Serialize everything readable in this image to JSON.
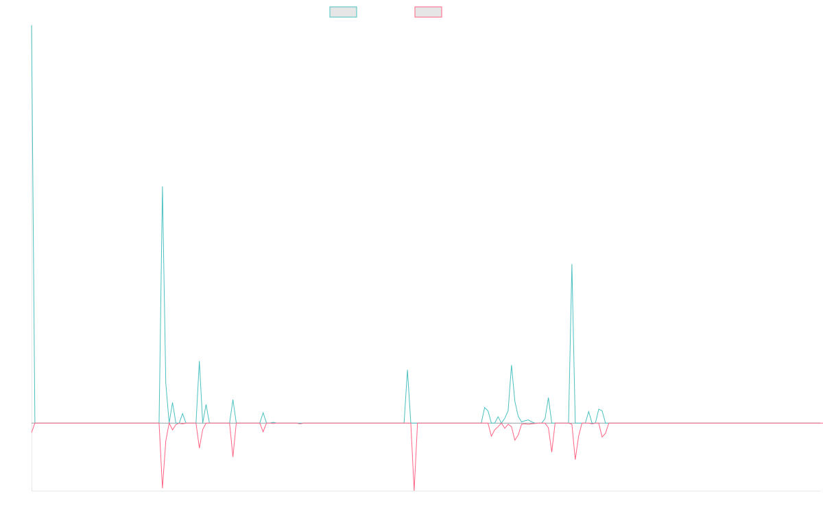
{
  "chart_data": {
    "type": "line",
    "title": "",
    "xlabel": "",
    "ylabel": "",
    "ylim": [
      -0.17,
      1.0
    ],
    "grid": false,
    "legend_position": "top-center",
    "series": [
      {
        "name": "",
        "color": "#4bc0c0",
        "legend_fill": "#e6e6e6",
        "values": [
          1.0,
          0,
          0,
          0,
          0,
          0,
          0,
          0,
          0,
          0,
          0,
          0,
          0,
          0,
          0,
          0,
          0,
          0,
          0,
          0,
          0,
          0,
          0,
          0,
          0,
          0,
          0,
          0,
          0,
          0,
          0,
          0,
          0,
          0,
          0,
          0,
          0,
          0,
          0,
          0.595,
          0.1,
          0,
          0.052,
          0,
          0,
          0.024,
          0,
          0,
          0,
          0,
          0.156,
          0,
          0.047,
          0,
          0,
          0,
          0,
          0,
          0,
          0,
          0.059,
          0,
          0,
          0,
          0,
          0,
          0,
          0,
          0,
          0.026,
          0,
          0,
          0.002,
          0,
          0,
          0,
          0,
          0,
          0,
          0,
          0,
          0,
          0,
          0,
          0,
          0,
          0,
          0,
          0,
          0,
          0,
          0,
          0,
          0,
          0,
          0,
          0,
          0,
          0,
          0,
          0,
          0,
          0,
          0,
          0,
          0,
          0,
          0,
          0,
          0,
          0,
          0,
          0.134,
          0,
          0,
          0,
          0,
          0,
          0,
          0,
          0,
          0,
          0,
          0,
          0,
          0,
          0,
          0,
          0,
          0,
          0,
          0,
          0,
          0,
          0,
          0.039,
          0.031,
          0,
          0,
          0.016,
          0,
          0.012,
          0.031,
          0.146,
          0.055,
          0.017,
          0.003,
          0.006,
          0.008,
          0.003,
          0,
          0,
          0,
          0.011,
          0.064,
          0,
          0,
          0,
          0,
          0,
          0,
          0.4,
          0,
          0,
          0,
          0,
          0.029,
          0,
          0,
          0.035,
          0.031,
          0,
          0,
          0,
          0,
          0,
          0,
          0,
          0,
          0,
          0,
          0,
          0,
          0,
          0,
          0,
          0,
          0,
          0,
          0,
          0,
          0,
          0,
          0,
          0,
          0,
          0,
          0,
          0,
          0,
          0,
          0,
          0,
          0,
          0,
          0,
          0,
          0,
          0,
          0,
          0,
          0,
          0,
          0,
          0,
          0,
          0,
          0,
          0,
          0,
          0,
          0,
          0,
          0,
          0,
          0,
          0,
          0,
          0,
          0,
          0,
          0,
          0,
          0,
          0,
          0
        ]
      },
      {
        "name": "",
        "color": "#ff6384",
        "legend_fill": "#e6e6e6",
        "values": [
          -0.024,
          0,
          0,
          0,
          0,
          0,
          0,
          0,
          0,
          0,
          0,
          0,
          0,
          0,
          0,
          0,
          0,
          0,
          0,
          0,
          0,
          0,
          0,
          0,
          0,
          0,
          0,
          0,
          0,
          0,
          0,
          0,
          0,
          0,
          0,
          0,
          0,
          0,
          0,
          -0.164,
          -0.045,
          0,
          -0.017,
          -0.004,
          0,
          -0.002,
          0,
          0,
          0,
          0,
          -0.063,
          -0.016,
          0,
          0,
          0,
          0,
          0,
          0,
          0,
          0,
          -0.085,
          0,
          0,
          0,
          0,
          0,
          0,
          0,
          0,
          -0.022,
          0,
          0,
          -0.001,
          0,
          0,
          0,
          0,
          0,
          0,
          0,
          -0.002,
          0,
          0,
          0,
          0,
          0,
          0,
          0,
          0,
          0,
          0,
          0,
          0,
          0,
          0,
          0,
          0,
          0,
          0,
          0,
          0,
          0,
          0,
          0,
          0,
          0,
          0,
          0,
          0,
          0,
          0,
          0,
          0,
          0,
          -0.17,
          0,
          0,
          0,
          0,
          0,
          0,
          0,
          0,
          0,
          0,
          0,
          0,
          0,
          0,
          0,
          0,
          0,
          0,
          0,
          0,
          0,
          0,
          -0.033,
          -0.017,
          -0.009,
          0,
          -0.013,
          -0.003,
          -0.009,
          -0.043,
          -0.03,
          -0.003,
          -0.002,
          -0.003,
          -0.002,
          -0.001,
          0,
          0,
          0,
          -0.012,
          -0.073,
          0,
          0,
          0,
          0,
          0,
          -0.003,
          -0.092,
          -0.033,
          0,
          0,
          0,
          -0.002,
          0,
          0,
          -0.035,
          -0.026,
          0,
          0,
          0,
          0,
          0,
          0,
          0,
          0,
          0,
          0,
          0,
          0,
          0,
          0,
          0,
          0,
          0,
          0,
          0,
          0,
          0,
          0,
          0,
          0,
          0,
          0,
          0,
          0,
          0,
          0,
          0,
          0,
          0,
          0,
          0,
          0,
          0,
          0,
          0,
          0,
          0,
          0,
          0,
          0,
          0,
          0,
          0,
          0,
          0,
          0,
          0,
          0,
          0,
          0,
          0,
          0,
          0,
          0,
          0,
          0,
          0,
          0,
          0,
          0,
          0
        ]
      }
    ]
  }
}
